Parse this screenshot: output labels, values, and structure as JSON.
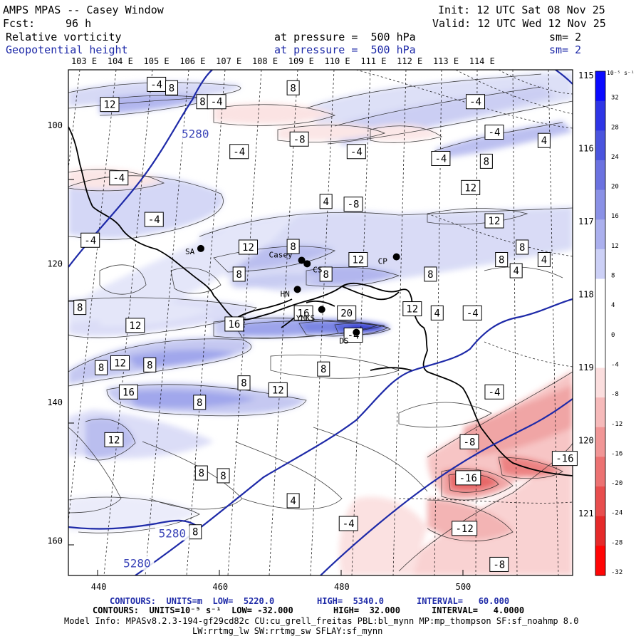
{
  "header": {
    "title": "AMPS MPAS -- Casey Window",
    "forecast_label": "Fcst:",
    "forecast_hours": "96 h",
    "init": "Init: 12 UTC Sat 08 Nov 25",
    "valid": "Valid: 12 UTC Wed 12 Nov 25",
    "field1_name": "Relative vorticity",
    "field1_level": "at pressure =  500 hPa",
    "field1_sm": "sm= 2",
    "field2_name": "Geopotential height",
    "field2_level": "at pressure =  500 hPa",
    "field2_sm": "sm= 2"
  },
  "chart_data": {
    "type": "contour-map",
    "title": "AMPS MPAS -- Casey Window",
    "fields": [
      {
        "name": "Relative vorticity",
        "units": "10^-5 s^-1",
        "low": -32.0,
        "high": 32.0,
        "interval": 4.0,
        "style": "filled"
      },
      {
        "name": "Geopotential height",
        "units": "m",
        "low": 5220.0,
        "high": 5340.0,
        "interval": 60.0,
        "style": "line",
        "color": "#1e2aa8"
      }
    ],
    "x_ticks": [
      "440",
      "460",
      "480",
      "500"
    ],
    "y_ticks": [
      "100",
      "120",
      "140",
      "160"
    ],
    "xlim": [
      435,
      518
    ],
    "ylim": [
      165,
      92
    ],
    "top_lon_labels": [
      "103 E",
      "104 E",
      "105 E",
      "106 E",
      "107 E",
      "108 E",
      "109 E",
      "110 E",
      "111 E",
      "112 E",
      "113 E",
      "114 E"
    ],
    "right_lon_labels": [
      "115 E",
      "116 E",
      "117 E",
      "118 E",
      "119 E",
      "120 E",
      "121 E"
    ],
    "colorbar": {
      "unit_label": "10⁻⁵ s⁻¹",
      "levels": [
        "32",
        "28",
        "24",
        "20",
        "16",
        "12",
        "8",
        "4",
        "0",
        "-4",
        "-8",
        "-12",
        "-16",
        "-20",
        "-24",
        "-28",
        "-32"
      ],
      "colors": [
        "#0a0aff",
        "#2e35e6",
        "#4a54de",
        "#6b72e0",
        "#8a91e6",
        "#abb0ee",
        "#ccd0f6",
        "#ffffff",
        "#ffffff",
        "#ffffff",
        "#fbdede",
        "#f6baba",
        "#f19696",
        "#ec7272",
        "#e84e4e",
        "#e52a2a",
        "#ff0505"
      ]
    },
    "stations": [
      {
        "name": "SA",
        "x": 456.8,
        "y": 117.8
      },
      {
        "name": "Casey",
        "x": 473.4,
        "y": 119.5
      },
      {
        "name": "CS",
        "x": 474.3,
        "y": 120.0
      },
      {
        "name": "CP",
        "x": 489.0,
        "y": 119.0
      },
      {
        "name": "HN",
        "x": 472.7,
        "y": 123.7
      },
      {
        "name": "YMKS",
        "x": 476.7,
        "y": 126.6
      },
      {
        "name": "DS",
        "x": 482.4,
        "y": 129.9
      }
    ],
    "vorticity_labels": [
      {
        "v": "-4",
        "x": 449.5,
        "y": 94.1
      },
      {
        "v": "8",
        "x": 452.0,
        "y": 94.6
      },
      {
        "v": "12",
        "x": 441.8,
        "y": 97.0
      },
      {
        "v": "8",
        "x": 457.1,
        "y": 96.6
      },
      {
        "v": "-4",
        "x": 459.4,
        "y": 96.6
      },
      {
        "v": "8",
        "x": 472.0,
        "y": 94.6
      },
      {
        "v": "-4",
        "x": 502.0,
        "y": 96.6
      },
      {
        "v": "-4",
        "x": 505.1,
        "y": 101.0
      },
      {
        "v": "4",
        "x": 513.3,
        "y": 102.2
      },
      {
        "v": "-8",
        "x": 473.0,
        "y": 102.0
      },
      {
        "v": "-4",
        "x": 463.1,
        "y": 103.8
      },
      {
        "v": "-4",
        "x": 482.4,
        "y": 103.8
      },
      {
        "v": "-4",
        "x": 496.3,
        "y": 104.8
      },
      {
        "v": "8",
        "x": 503.8,
        "y": 105.2
      },
      {
        "v": "-4",
        "x": 443.3,
        "y": 107.6
      },
      {
        "v": "12",
        "x": 501.2,
        "y": 109.0
      },
      {
        "v": "4",
        "x": 477.4,
        "y": 111.0
      },
      {
        "v": "-8",
        "x": 481.9,
        "y": 111.4
      },
      {
        "v": "-4",
        "x": 449.1,
        "y": 113.6
      },
      {
        "v": "12",
        "x": 505.1,
        "y": 113.8
      },
      {
        "v": "-4",
        "x": 438.6,
        "y": 116.6
      },
      {
        "v": "12",
        "x": 464.6,
        "y": 117.6
      },
      {
        "v": "8",
        "x": 472.0,
        "y": 117.5
      },
      {
        "v": "8",
        "x": 509.7,
        "y": 117.6
      },
      {
        "v": "12",
        "x": 482.7,
        "y": 119.4
      },
      {
        "v": "8",
        "x": 506.3,
        "y": 119.4
      },
      {
        "v": "4",
        "x": 513.3,
        "y": 119.4
      },
      {
        "v": "4",
        "x": 508.7,
        "y": 121.0
      },
      {
        "v": "8",
        "x": 463.1,
        "y": 121.5
      },
      {
        "v": "8",
        "x": 477.4,
        "y": 121.5
      },
      {
        "v": "8",
        "x": 494.6,
        "y": 121.5
      },
      {
        "v": "8",
        "x": 436.9,
        "y": 126.3
      },
      {
        "v": "16",
        "x": 473.7,
        "y": 127.1
      },
      {
        "v": "20",
        "x": 480.8,
        "y": 127.1
      },
      {
        "v": "12",
        "x": 491.6,
        "y": 126.5
      },
      {
        "v": "4",
        "x": 495.7,
        "y": 127.1
      },
      {
        "v": "-4",
        "x": 501.5,
        "y": 127.1
      },
      {
        "v": "12",
        "x": 446.0,
        "y": 128.9
      },
      {
        "v": "16",
        "x": 462.3,
        "y": 128.7
      },
      {
        "v": "-4",
        "x": 481.9,
        "y": 130.3
      },
      {
        "v": "8",
        "x": 440.4,
        "y": 135.0
      },
      {
        "v": "12",
        "x": 443.5,
        "y": 134.3
      },
      {
        "v": "8",
        "x": 448.4,
        "y": 134.6
      },
      {
        "v": "8",
        "x": 477.0,
        "y": 135.2
      },
      {
        "v": "8",
        "x": 463.9,
        "y": 137.2
      },
      {
        "v": "12",
        "x": 469.5,
        "y": 138.2
      },
      {
        "v": "16",
        "x": 444.9,
        "y": 138.5
      },
      {
        "v": "-4",
        "x": 505.1,
        "y": 138.5
      },
      {
        "v": "8",
        "x": 456.6,
        "y": 140.0
      },
      {
        "v": "12",
        "x": 442.5,
        "y": 145.4
      },
      {
        "v": "-8",
        "x": 501.0,
        "y": 145.7
      },
      {
        "v": "-16",
        "x": 516.7,
        "y": 148.1
      },
      {
        "v": "8",
        "x": 456.9,
        "y": 150.2
      },
      {
        "v": "8",
        "x": 460.5,
        "y": 150.6
      },
      {
        "v": "-16",
        "x": 500.8,
        "y": 150.9
      },
      {
        "v": "4",
        "x": 472.0,
        "y": 154.2
      },
      {
        "v": "-4",
        "x": 481.1,
        "y": 157.5
      },
      {
        "v": "-12",
        "x": 500.2,
        "y": 158.2
      },
      {
        "v": "8",
        "x": 455.9,
        "y": 158.7
      },
      {
        "v": "-8",
        "x": 505.9,
        "y": 163.4
      }
    ],
    "height_labels": [
      {
        "v": "5280",
        "x": 455.9,
        "y": 101.3
      },
      {
        "v": "5280",
        "x": 452.1,
        "y": 159.0
      },
      {
        "v": "5280",
        "x": 446.3,
        "y": 163.3
      }
    ]
  },
  "footer": {
    "line1_prefix": "CONTOURS:  UNITS=m  LOW=  5220.0",
    "line1_high": "HIGH=  5340.0",
    "line1_interval": "INTERVAL=   60.000",
    "line2_prefix": "CONTOURS:  UNITS=10⁻⁵ s⁻¹  LOW= -32.000",
    "line2_high": "HIGH=  32.000",
    "line2_interval": "INTERVAL=   4.0000",
    "model_info": "Model Info: MPASv8.2.3-194-gf29cd82c CU:cu_grell_freitas PBL:bl_mynn MP:mp_thompson SF:sf_noahmp 8.0",
    "model_info2": "LW:rrtmg_lw SW:rrtmg_sw SFLAY:sf_mynn"
  }
}
